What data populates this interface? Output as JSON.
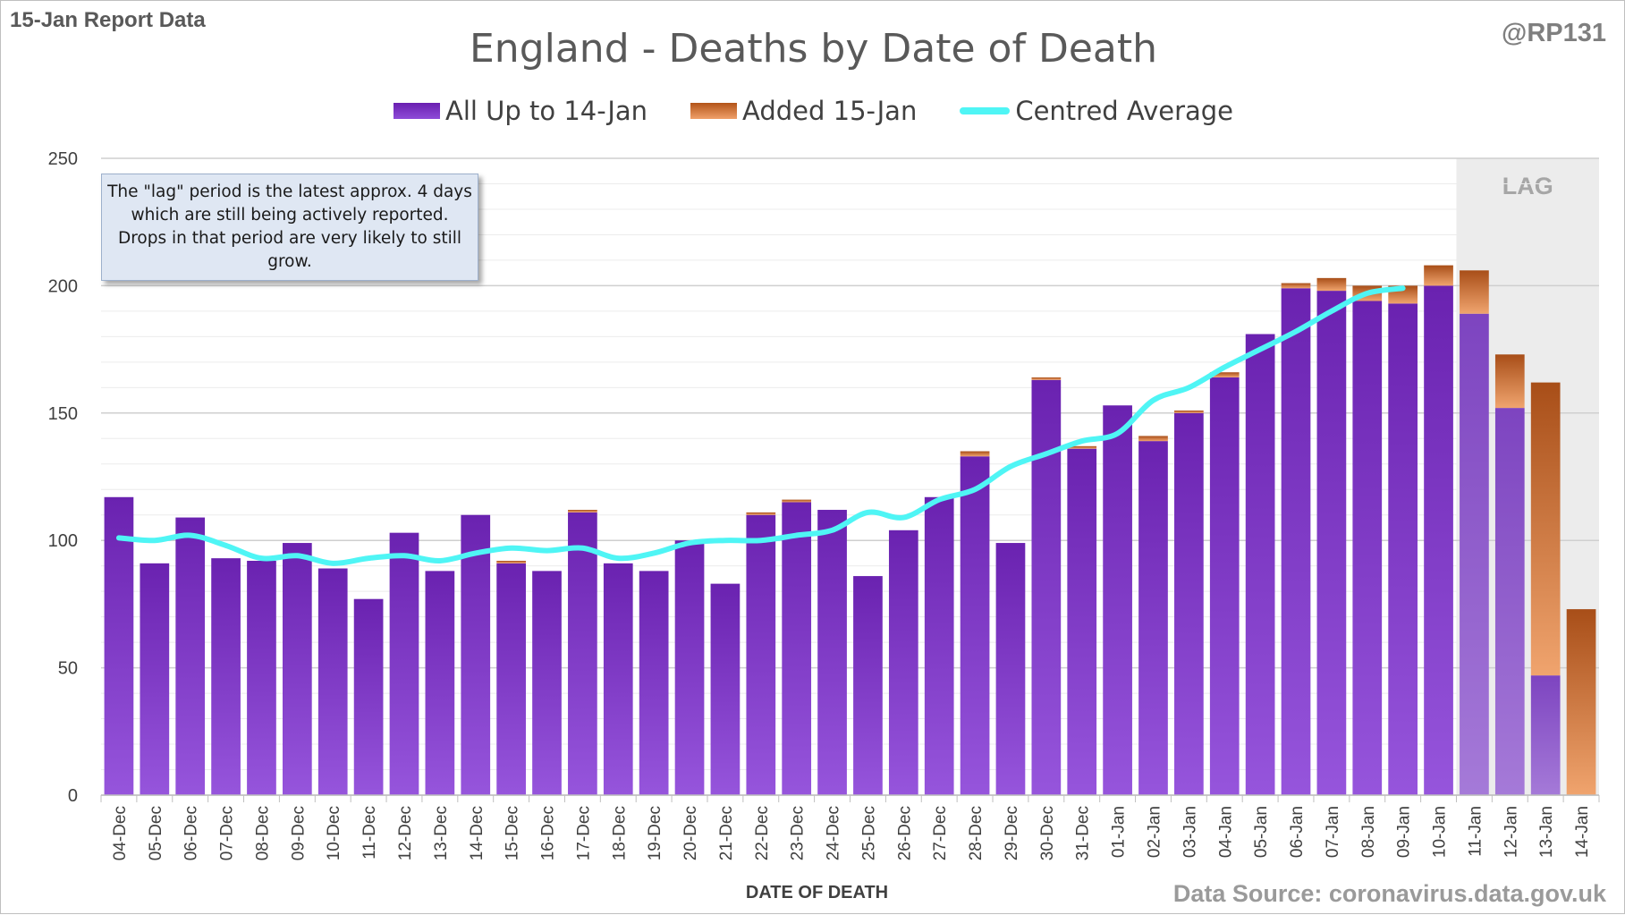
{
  "header": {
    "report_label": "15-Jan Report Data",
    "handle": "@RP131"
  },
  "footer": {
    "source": "Data Source: coronavirus.data.gov.uk"
  },
  "annotation": {
    "note": "The \"lag\" period is the latest approx. 4 days which are still being actively reported.  Drops in that period are very likely to still grow.",
    "lag_label": "LAG"
  },
  "colors": {
    "primary": "#7a32c4",
    "added": "#d9772e",
    "average": "#4ff5f5",
    "lag_shade": "#ececec",
    "grid": "#d9d9d9"
  },
  "chart_data": {
    "type": "bar",
    "stacked": true,
    "title": "England - Deaths by Date of Death",
    "xlabel": "DATE OF DEATH",
    "ylabel": "",
    "ylim": [
      0,
      250
    ],
    "yticks": [
      0,
      50,
      100,
      150,
      200,
      250
    ],
    "grid": true,
    "legend_position": "top",
    "categories": [
      "04-Dec",
      "05-Dec",
      "06-Dec",
      "07-Dec",
      "08-Dec",
      "09-Dec",
      "10-Dec",
      "11-Dec",
      "12-Dec",
      "13-Dec",
      "14-Dec",
      "15-Dec",
      "16-Dec",
      "17-Dec",
      "18-Dec",
      "19-Dec",
      "20-Dec",
      "21-Dec",
      "22-Dec",
      "23-Dec",
      "24-Dec",
      "25-Dec",
      "26-Dec",
      "27-Dec",
      "28-Dec",
      "29-Dec",
      "30-Dec",
      "31-Dec",
      "01-Jan",
      "02-Jan",
      "03-Jan",
      "04-Jan",
      "05-Jan",
      "06-Jan",
      "07-Jan",
      "08-Jan",
      "09-Jan",
      "10-Jan",
      "11-Jan",
      "12-Jan",
      "13-Jan",
      "14-Jan"
    ],
    "series": [
      {
        "name": "All Up to 14-Jan",
        "kind": "bar",
        "values": [
          117,
          91,
          109,
          93,
          92,
          99,
          89,
          77,
          103,
          88,
          110,
          91,
          88,
          111,
          91,
          88,
          100,
          83,
          110,
          115,
          112,
          86,
          104,
          117,
          133,
          99,
          163,
          136,
          153,
          139,
          150,
          164,
          181,
          199,
          198,
          194,
          193,
          200,
          189,
          152,
          47,
          0
        ]
      },
      {
        "name": "Added 15-Jan",
        "kind": "bar",
        "values": [
          0,
          0,
          0,
          0,
          0,
          0,
          0,
          0,
          0,
          0,
          0,
          1,
          0,
          1,
          0,
          0,
          0,
          0,
          1,
          1,
          0,
          0,
          0,
          0,
          2,
          0,
          1,
          1,
          0,
          2,
          1,
          2,
          0,
          2,
          5,
          6,
          7,
          8,
          17,
          21,
          115,
          73
        ]
      },
      {
        "name": "Centred Average",
        "kind": "line",
        "values": [
          101,
          100,
          102,
          98,
          93,
          94,
          91,
          93,
          94,
          92,
          95,
          97,
          96,
          97,
          93,
          95,
          99,
          100,
          100,
          102,
          104,
          111,
          109,
          116,
          120,
          129,
          134,
          139,
          142,
          155,
          160,
          168,
          175,
          182,
          190,
          197,
          199,
          null,
          null,
          null,
          null,
          null
        ]
      }
    ],
    "lag_categories": [
      "11-Jan",
      "12-Jan",
      "13-Jan",
      "14-Jan"
    ]
  }
}
